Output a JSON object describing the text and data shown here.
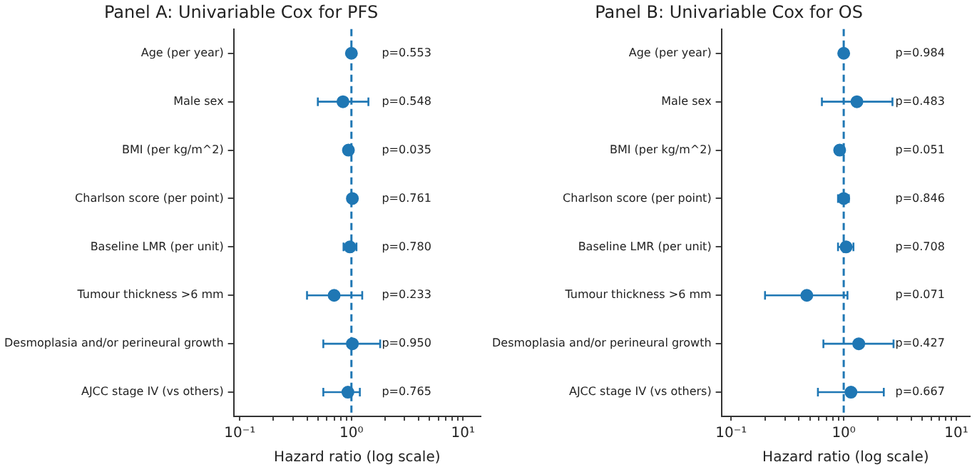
{
  "chart_data": [
    {
      "type": "scatter",
      "title": "Panel A: Univariable Cox for PFS",
      "xlabel": "Hazard ratio (log scale)",
      "orientation": "horizontal",
      "log": "x",
      "marker": "circle",
      "grid": false,
      "legend": false,
      "categories": [
        "Age (per year)",
        "Male sex",
        "BMI (per kg/m^2)",
        "Charlson score (per point)",
        "Baseline LMR (per unit)",
        "Tumour thickness >6 mm",
        "Desmoplasia and/or perineural growth",
        "AJCC stage IV (vs others)"
      ],
      "series": [
        {
          "color": "#1f77b4",
          "values": [
            1.0,
            0.84,
            0.94,
            1.02,
            0.97,
            0.7,
            1.02,
            0.93
          ],
          "errors": [
            [
              0.98,
              1.02
            ],
            [
              0.5,
              1.42
            ],
            [
              0.92,
              0.96
            ],
            null,
            [
              0.85,
              1.11
            ],
            [
              0.4,
              1.25
            ],
            [
              0.56,
              1.81
            ],
            [
              0.56,
              1.19
            ]
          ]
        }
      ],
      "xlim": [
        0.088,
        14.4
      ],
      "xticks": [
        {
          "value": 0.1,
          "label": "10⁻¹"
        },
        {
          "value": 0.2,
          "label": null
        },
        {
          "value": 0.3,
          "label": null
        },
        {
          "value": 0.4,
          "label": null
        },
        {
          "value": 0.5,
          "label": null
        },
        {
          "value": 0.6,
          "label": null
        },
        {
          "value": 0.7,
          "label": null
        },
        {
          "value": 0.8,
          "label": null
        },
        {
          "value": 0.9,
          "label": null
        },
        {
          "value": 1,
          "label": "10⁰"
        },
        {
          "value": 2,
          "label": null
        },
        {
          "value": 3,
          "label": null
        },
        {
          "value": 4,
          "label": null
        },
        {
          "value": 5,
          "label": null
        },
        {
          "value": 6,
          "label": null
        },
        {
          "value": 7,
          "label": null
        },
        {
          "value": 8,
          "label": null
        },
        {
          "value": 9,
          "label": null
        },
        {
          "value": 10,
          "label": "10¹"
        }
      ],
      "ref_lines": [
        {
          "axis": "x",
          "value": 1,
          "color": "#1f77b4",
          "line_style": "dashed"
        }
      ],
      "annotations": [
        "p=0.553",
        "p=0.548",
        "p=0.035",
        "p=0.761",
        "p=0.780",
        "p=0.233",
        "p=0.950",
        "p=0.765"
      ]
    },
    {
      "type": "scatter",
      "title": "Panel B: Univariable Cox for OS",
      "xlabel": "Hazard ratio (log scale)",
      "orientation": "horizontal",
      "log": "x",
      "marker": "circle",
      "grid": false,
      "legend": false,
      "categories": [
        "Age (per year)",
        "Male sex",
        "BMI (per kg/m^2)",
        "Charlson score (per point)",
        "Baseline LMR (per unit)",
        "Tumour thickness >6 mm",
        "Desmoplasia and/or perineural growth",
        "AJCC stage IV (vs others)"
      ],
      "series": [
        {
          "color": "#1f77b4",
          "values": [
            1.0,
            1.31,
            0.92,
            1.0,
            1.05,
            0.47,
            1.36,
            1.16
          ],
          "errors": [
            [
              0.98,
              1.02
            ],
            [
              0.64,
              2.71
            ],
            null,
            [
              0.89,
              1.11
            ],
            [
              0.89,
              1.22
            ],
            [
              0.2,
              1.08
            ],
            [
              0.66,
              2.77
            ],
            [
              0.59,
              2.27
            ]
          ]
        }
      ],
      "xlim": [
        0.082,
        13.2
      ],
      "xticks": [
        {
          "value": 0.1,
          "label": "10⁻¹"
        },
        {
          "value": 0.2,
          "label": null
        },
        {
          "value": 0.3,
          "label": null
        },
        {
          "value": 0.4,
          "label": null
        },
        {
          "value": 0.5,
          "label": null
        },
        {
          "value": 0.6,
          "label": null
        },
        {
          "value": 0.7,
          "label": null
        },
        {
          "value": 0.8,
          "label": null
        },
        {
          "value": 0.9,
          "label": null
        },
        {
          "value": 1,
          "label": "10⁰"
        },
        {
          "value": 2,
          "label": null
        },
        {
          "value": 3,
          "label": null
        },
        {
          "value": 4,
          "label": null
        },
        {
          "value": 5,
          "label": null
        },
        {
          "value": 6,
          "label": null
        },
        {
          "value": 7,
          "label": null
        },
        {
          "value": 8,
          "label": null
        },
        {
          "value": 9,
          "label": null
        },
        {
          "value": 10,
          "label": "10¹"
        }
      ],
      "ref_lines": [
        {
          "axis": "x",
          "value": 1,
          "color": "#1f77b4",
          "line_style": "dashed"
        }
      ],
      "annotations": [
        "p=0.984",
        "p=0.483",
        "p=0.051",
        "p=0.846",
        "p=0.708",
        "p=0.071",
        "p=0.427",
        "p=0.667"
      ]
    }
  ]
}
